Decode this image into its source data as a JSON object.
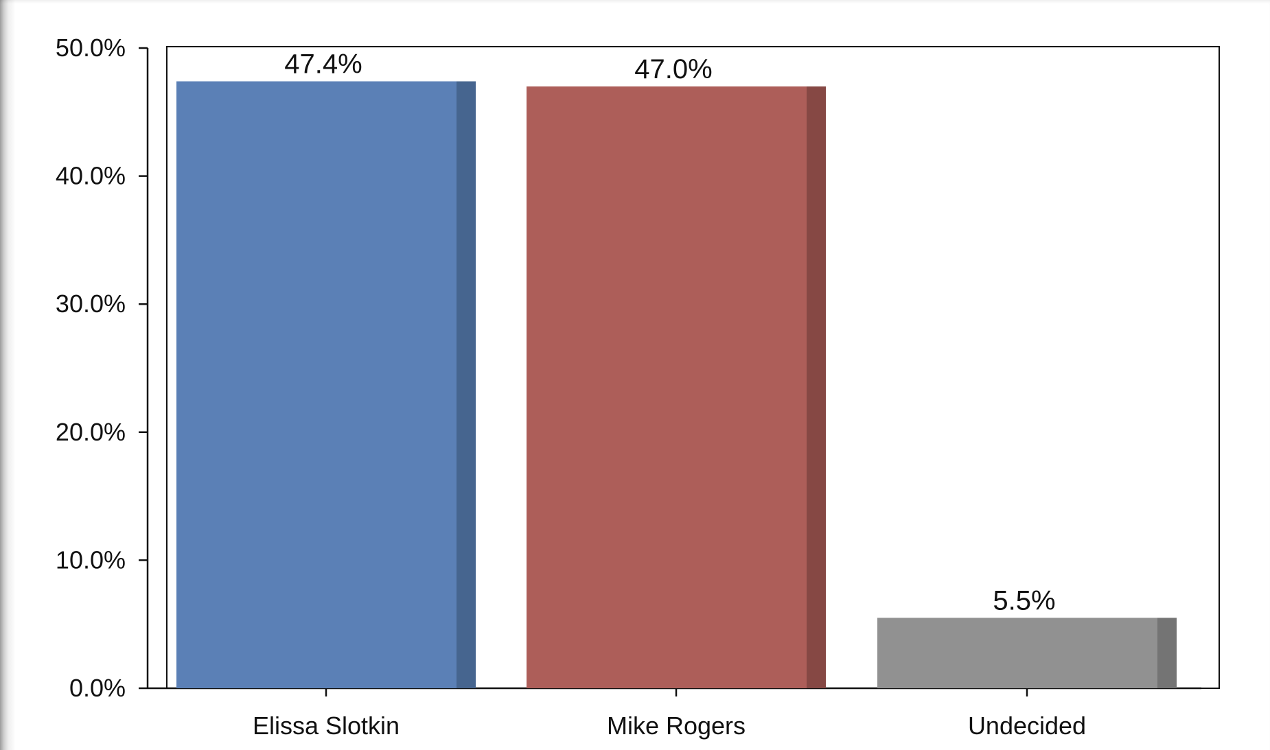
{
  "chart_data": {
    "type": "bar",
    "categories": [
      "Elissa Slotkin",
      "Mike Rogers",
      "Undecided"
    ],
    "values": [
      47.4,
      47.0,
      5.5
    ],
    "value_labels": [
      "47.4%",
      "47.0%",
      "5.5%"
    ],
    "colors": [
      "#5b80b6",
      "#ad5e59",
      "#919191"
    ],
    "shade_colors": [
      "#46658f",
      "#864844",
      "#747474"
    ],
    "ylim": [
      0,
      50
    ],
    "yticks": [
      0,
      10,
      20,
      30,
      40,
      50
    ],
    "ytick_labels": [
      "0.0%",
      "10.0%",
      "20.0%",
      "30.0%",
      "40.0%",
      "50.0%"
    ],
    "title": "",
    "xlabel": "",
    "ylabel": "",
    "grid": false,
    "legend": "none"
  }
}
